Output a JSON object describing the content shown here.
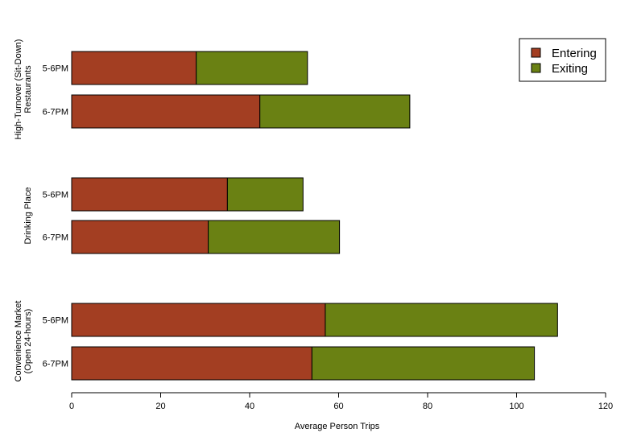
{
  "chart_data": {
    "type": "bar",
    "orientation": "horizontal",
    "stacked": true,
    "xlabel": "Average Person Trips",
    "xlim": [
      0,
      120
    ],
    "xticks": [
      0,
      20,
      40,
      60,
      80,
      100,
      120
    ],
    "legend_position": "top-right",
    "groups": [
      {
        "label_lines": [
          "High-Turnover (Sit-Down)",
          "Restaurants"
        ],
        "bars": [
          {
            "label": "5-6PM",
            "values": [
              28,
              25
            ]
          },
          {
            "label": "6-7PM",
            "values": [
              42.3,
              33.7
            ]
          }
        ]
      },
      {
        "label_lines": [
          "Drinking Place"
        ],
        "bars": [
          {
            "label": "5-6PM",
            "values": [
              35,
              17
            ]
          },
          {
            "label": "6-7PM",
            "values": [
              30.7,
              29.5
            ]
          }
        ]
      },
      {
        "label_lines": [
          "Convenience Market",
          "(Open 24-hours)"
        ],
        "bars": [
          {
            "label": "5-6PM",
            "values": [
              57,
              52.2
            ]
          },
          {
            "label": "6-7PM",
            "values": [
              54,
              50
            ]
          }
        ]
      }
    ],
    "series": [
      {
        "name": "Entering",
        "color": "#A33E22"
      },
      {
        "name": "Exiting",
        "color": "#6A8113"
      }
    ]
  }
}
